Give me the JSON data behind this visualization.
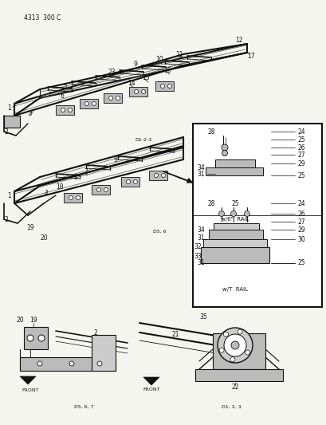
{
  "title": "4313  300 C",
  "bg_color": "#f5f5f0",
  "fg_color": "#000000",
  "fig_width": 4.1,
  "fig_height": 5.33,
  "dpi": 100,
  "top_frame_ref": "D1-2-3",
  "bottom_frame_ref": "D5, 6",
  "bracket_ref": "D5, 6, 7",
  "mount_ref": "D1, 2, 3"
}
